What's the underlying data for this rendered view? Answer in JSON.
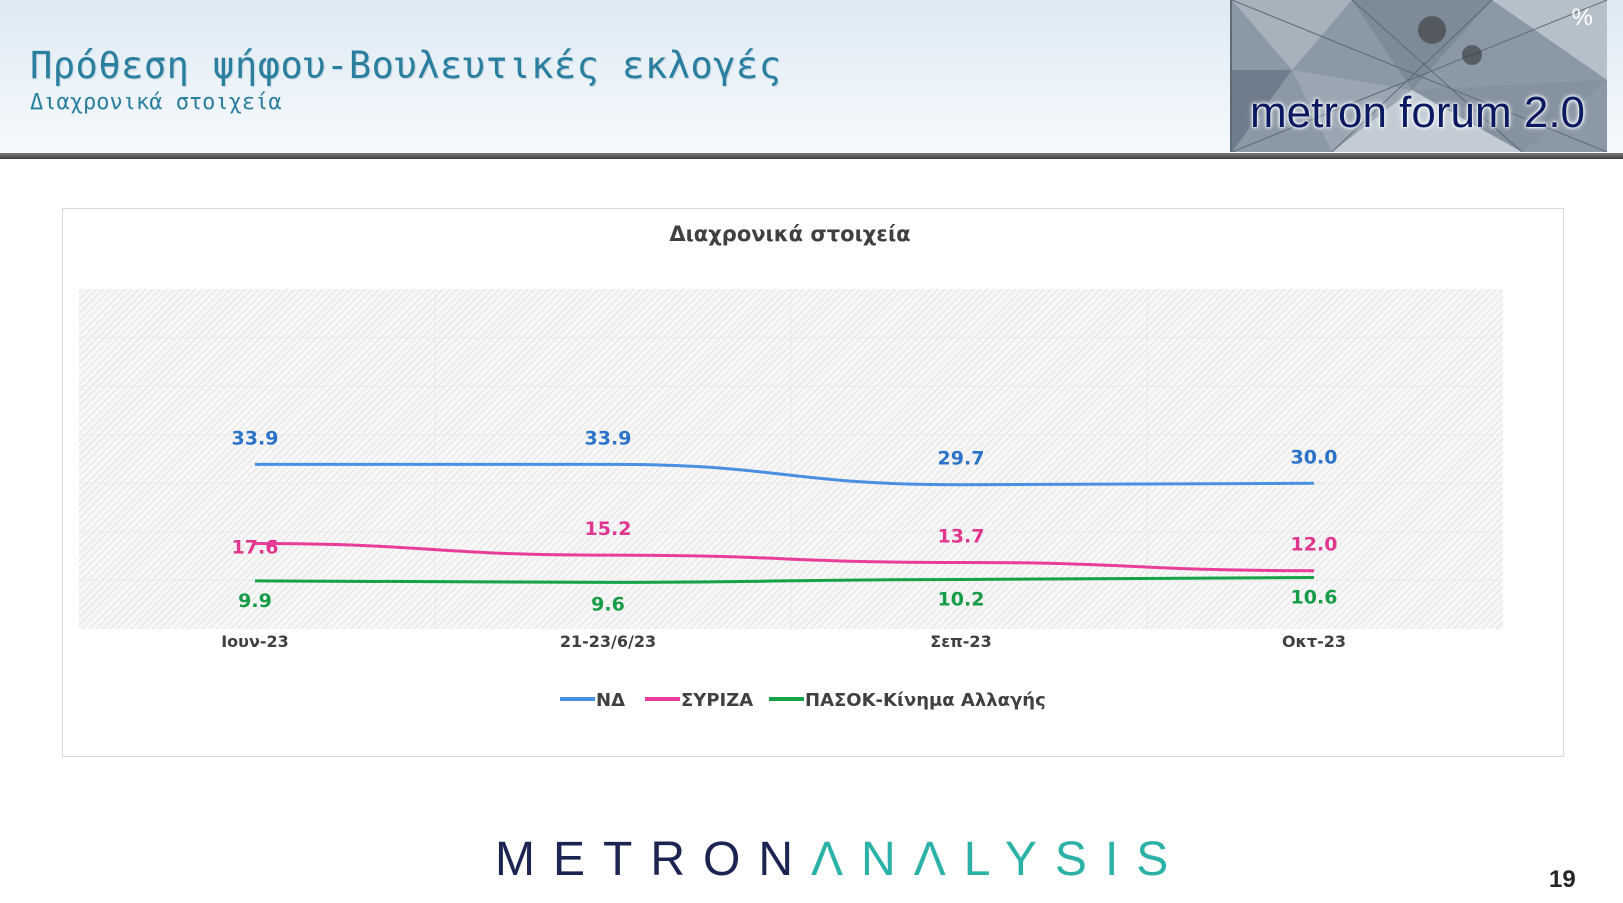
{
  "header": {
    "title": "Πρόθεση ψήφου-Βουλευτικές εκλογές",
    "subtitle": "Διαχρονικά στοιχεία",
    "forum_logo": "metron forum 2.0",
    "percent_icon": "%"
  },
  "chart_data": {
    "type": "line",
    "title": "Διαχρονικά στοιχεία",
    "categories": [
      "Ιουν-23",
      "21-23/6/23",
      "Σεπ-23",
      "Οκτ-23"
    ],
    "series": [
      {
        "name": "ΝΔ",
        "color": "#4a90e2",
        "label_color": "#2b73c8",
        "values": [
          33.9,
          33.9,
          29.7,
          30.0
        ],
        "labels": [
          "33.9",
          "33.9",
          "29.7",
          "30.0"
        ]
      },
      {
        "name": "ΣΥΡΙΖΑ",
        "color": "#e83e9a",
        "label_color": "#e0368f",
        "values": [
          17.6,
          15.2,
          13.7,
          12.0
        ],
        "labels": [
          "17.6",
          "15.2",
          "13.7",
          "12.0"
        ]
      },
      {
        "name": "ΠΑΣΟΚ-Κίνημα Αλλαγής",
        "color": "#15a34a",
        "label_color": "#169b46",
        "values": [
          9.9,
          9.6,
          10.2,
          10.6
        ],
        "labels": [
          "9.9",
          "9.6",
          "10.2",
          "10.6"
        ]
      }
    ],
    "ylim": [
      0,
      70
    ],
    "grid": true,
    "legend": "bottom-center"
  },
  "footer": {
    "logo_dark": "METRON",
    "logo_light": "ΛNΛLYSIS",
    "page_number": "19"
  }
}
